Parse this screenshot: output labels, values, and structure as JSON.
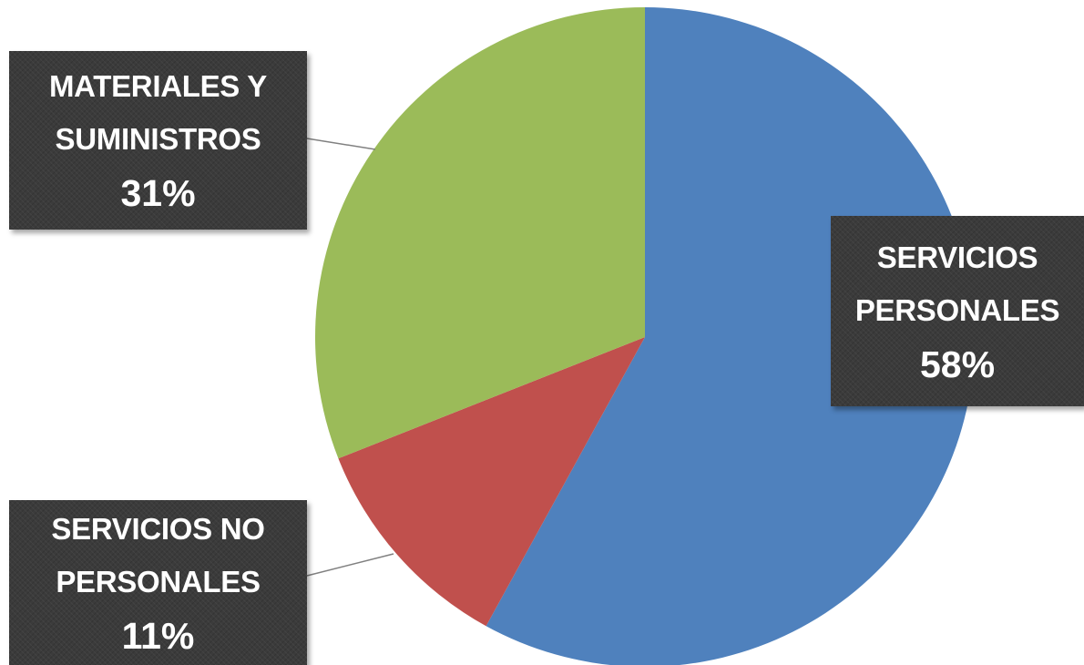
{
  "chart_data": {
    "type": "pie",
    "slices": [
      {
        "label_lines": [
          "SERVICIOS",
          "PERSONALES"
        ],
        "value": 58,
        "value_label": "58%",
        "color": "#4f81bd"
      },
      {
        "label_lines": [
          "SERVICIOS NO",
          "PERSONALES"
        ],
        "value": 11,
        "value_label": "11%",
        "color": "#c0504d"
      },
      {
        "label_lines": [
          "MATERIALES Y",
          "SUMINISTROS"
        ],
        "value": 31,
        "value_label": "31%",
        "color": "#9bbb59"
      }
    ],
    "start_angle_deg": 0,
    "direction": "clockwise",
    "data_label_style": "callout boxes with leader lines"
  }
}
